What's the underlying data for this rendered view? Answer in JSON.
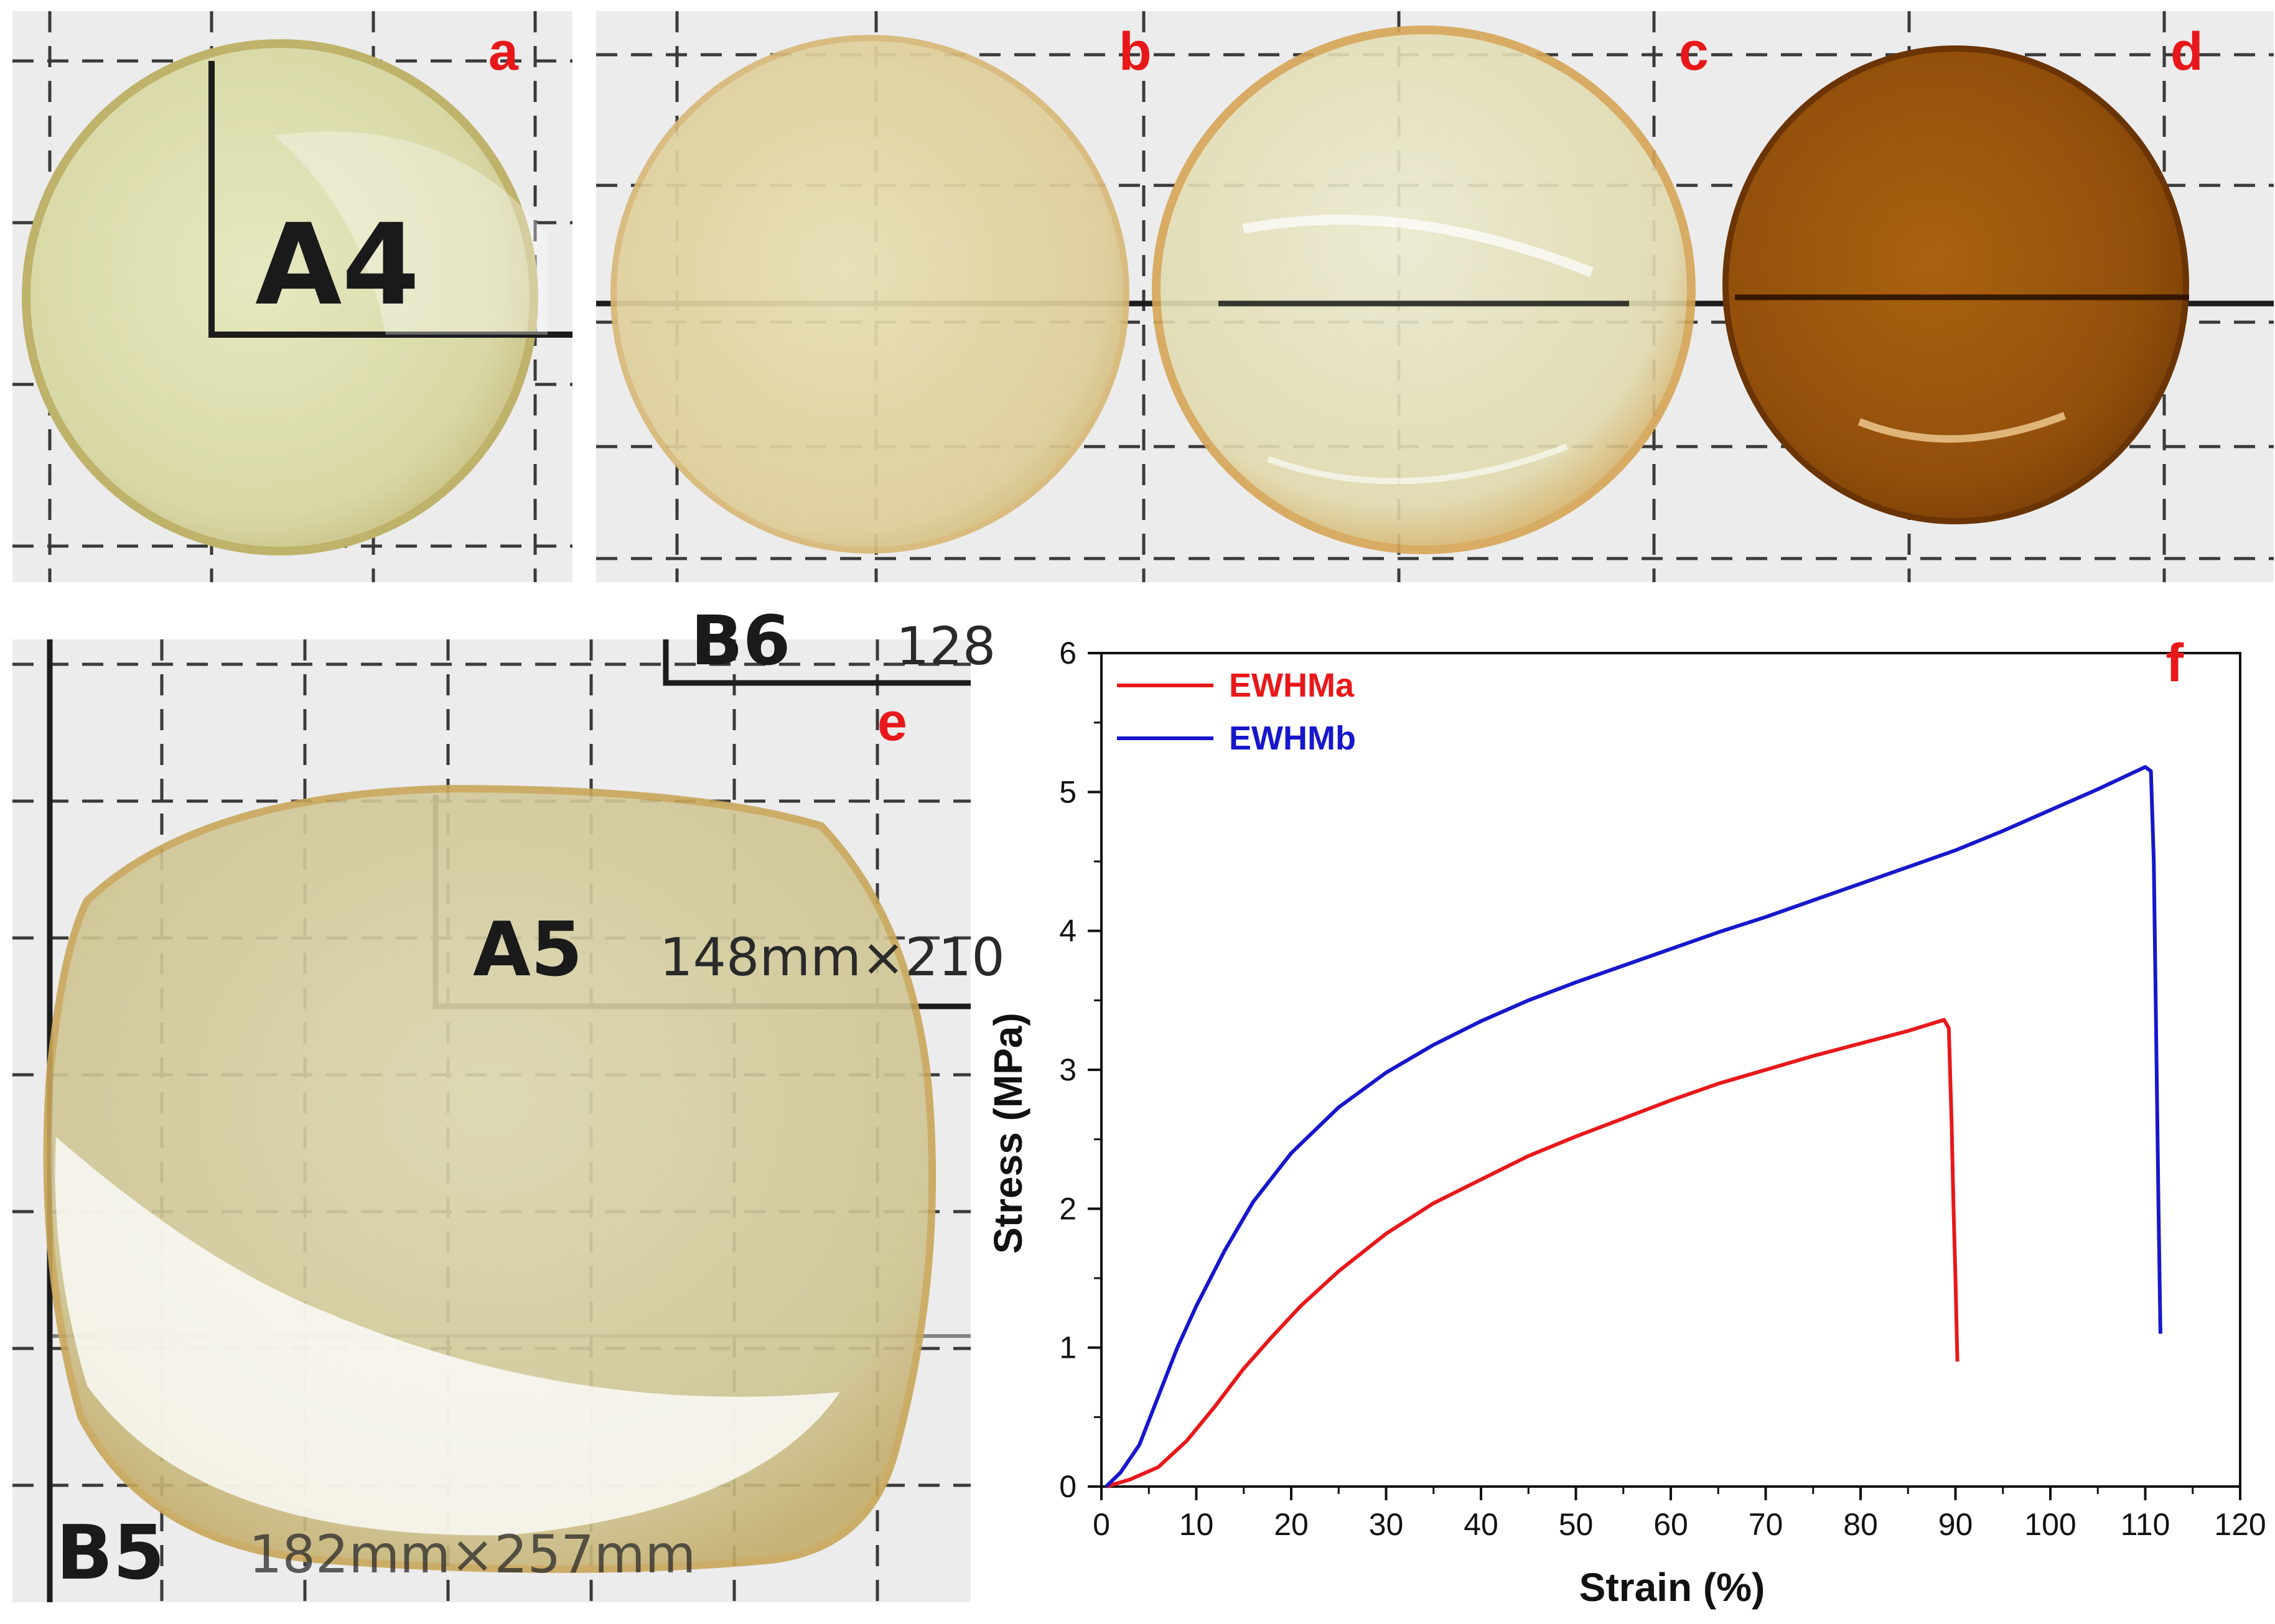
{
  "panels": {
    "a": {
      "label": "a",
      "grid_text": [
        "A4"
      ]
    },
    "bcd": {
      "labels": [
        "b",
        "c",
        "d"
      ]
    },
    "e": {
      "label": "e",
      "grid_text": [
        "A5",
        "148mm×210",
        "B5",
        "182mm×257mm",
        "B6",
        "128"
      ]
    }
  },
  "chart_label": "f",
  "chart_data": {
    "type": "line",
    "xlabel": "Strain (%)",
    "ylabel": "Stress (MPa)",
    "xlim": [
      0,
      120
    ],
    "ylim": [
      0,
      6
    ],
    "xticks": [
      0,
      10,
      20,
      30,
      40,
      50,
      60,
      70,
      80,
      90,
      100,
      110,
      120
    ],
    "yticks": [
      0,
      1,
      2,
      3,
      4,
      5,
      6
    ],
    "legend_position": "top-left",
    "series": [
      {
        "name": "EWHMa",
        "color": "#e8181a",
        "x": [
          0.5,
          3,
          6,
          9,
          12,
          15,
          18,
          21,
          25,
          30,
          35,
          40,
          45,
          50,
          55,
          60,
          65,
          70,
          75,
          80,
          85,
          88.8,
          89.3,
          89.6,
          89.8,
          90,
          90.1,
          90.2
        ],
        "y": [
          0.0,
          0.05,
          0.14,
          0.33,
          0.58,
          0.85,
          1.08,
          1.3,
          1.55,
          1.82,
          2.04,
          2.21,
          2.38,
          2.52,
          2.65,
          2.78,
          2.9,
          3.0,
          3.1,
          3.19,
          3.28,
          3.36,
          3.3,
          2.6,
          2.0,
          1.5,
          1.2,
          0.9
        ]
      },
      {
        "name": "EWHMb",
        "color": "#1717cc",
        "x": [
          0.5,
          2,
          4,
          6,
          8,
          10,
          13,
          16,
          20,
          25,
          30,
          35,
          40,
          45,
          50,
          55,
          60,
          65,
          70,
          75,
          80,
          85,
          90,
          95,
          100,
          105,
          110,
          110.6,
          110.9,
          111.2,
          111.4,
          111.6
        ],
        "y": [
          0.0,
          0.1,
          0.3,
          0.65,
          1.0,
          1.3,
          1.7,
          2.05,
          2.4,
          2.73,
          2.98,
          3.18,
          3.35,
          3.5,
          3.63,
          3.75,
          3.87,
          3.99,
          4.1,
          4.22,
          4.34,
          4.46,
          4.58,
          4.72,
          4.87,
          5.02,
          5.18,
          5.15,
          4.5,
          3.0,
          2.0,
          1.1
        ]
      }
    ]
  },
  "colors": {
    "label_red": "#e8181a",
    "paper": "#ebebeb",
    "film_light": "#e2d9a6",
    "film_dark": "#8c4a0a"
  }
}
